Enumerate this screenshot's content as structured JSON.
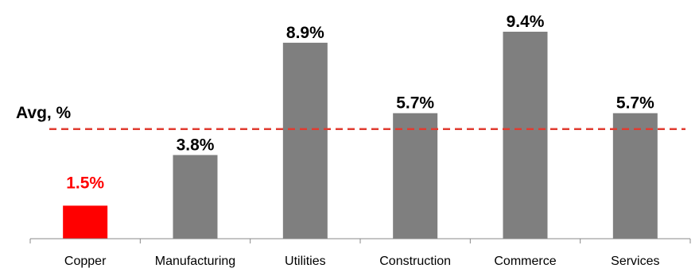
{
  "chart_data": {
    "type": "bar",
    "categories": [
      "Copper",
      "Manufacturing",
      "Utilities",
      "Construction",
      "Commerce",
      "Services"
    ],
    "values": [
      1.5,
      3.8,
      8.9,
      5.7,
      9.4,
      5.7
    ],
    "value_labels": [
      "1.5%",
      "3.8%",
      "8.9%",
      "5.7%",
      "9.4%",
      "5.7%"
    ],
    "highlight_index": 0,
    "colors": {
      "bar": "#7f7f7f",
      "highlight": "#ff0000",
      "label": "#000000",
      "highlight_label": "#ff0000",
      "average_line": "#e03c31",
      "axis": "#888888"
    },
    "average": {
      "label": "Avg, %",
      "value": 5.7,
      "line_style": "dashed"
    },
    "ylim": [
      0,
      10
    ],
    "grid": false,
    "legend": "none"
  }
}
